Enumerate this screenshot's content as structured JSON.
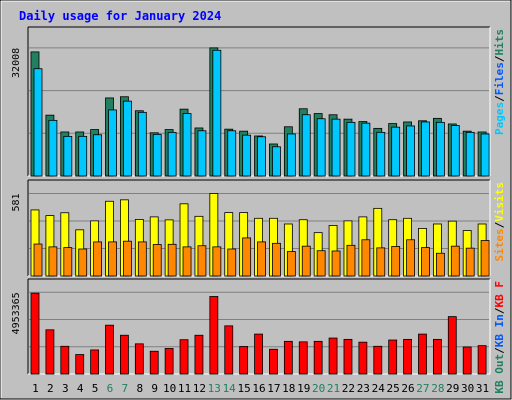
{
  "chart_data": {
    "type": "bar",
    "title": "Daily usage for January 2024",
    "categories": [
      "1",
      "2",
      "3",
      "4",
      "5",
      "6",
      "7",
      "8",
      "9",
      "10",
      "11",
      "12",
      "13",
      "14",
      "15",
      "16",
      "17",
      "18",
      "19",
      "20",
      "21",
      "22",
      "23",
      "24",
      "25",
      "26",
      "27",
      "28",
      "29",
      "30",
      "31"
    ],
    "weekend_days": [
      "6",
      "7",
      "13",
      "14",
      "20",
      "21",
      "27",
      "28"
    ],
    "panels": [
      {
        "id": "hits",
        "ymax_label": "32008",
        "ymax": 32008,
        "series": [
          {
            "name": "Hits",
            "color": "#208060",
            "values": [
              31000,
              15200,
              11000,
              11000,
              11600,
              19500,
              19800,
              16300,
              10800,
              11600,
              16700,
              12000,
              32008,
              11700,
              11200,
              10000,
              8000,
              12300,
              16800,
              15600,
              15300,
              14200,
              13600,
              11900,
              13100,
              13500,
              13800,
              14400,
              13000,
              11200,
              11000
            ]
          },
          {
            "name": "Files",
            "color": "#00c8ff",
            "values": [
              26800,
              13900,
              9900,
              9900,
              10300,
              16500,
              18700,
              15900,
              10400,
              10900,
              15600,
              11300,
              31400,
              11300,
              10200,
              9800,
              7300,
              10500,
              15300,
              14300,
              14200,
              13400,
              13200,
              10900,
              12200,
              12500,
              13500,
              13400,
              12600,
              10900,
              10500
            ]
          },
          {
            "name": "Pages",
            "color": "#00c8ff",
            "values": []
          }
        ],
        "legend": [
          {
            "label": "Hits",
            "color": "#208060"
          },
          {
            "label": "Files",
            "color": "#0058ff"
          },
          {
            "label": "Pages",
            "color": "#00c8ff"
          }
        ]
      },
      {
        "id": "visits",
        "ymax_label": "581",
        "ymax": 581,
        "series": [
          {
            "name": "Visits",
            "color": "#ffff00",
            "values": [
              465,
              425,
              445,
              325,
              388,
              526,
              536,
              398,
              416,
              395,
              508,
              420,
              581,
              446,
              446,
              406,
              406,
              366,
              396,
              305,
              356,
              388,
              416,
              476,
              396,
              406,
              335,
              366,
              386,
              320,
              366
            ]
          },
          {
            "name": "Sites",
            "color": "#ff8800",
            "values": [
              225,
              205,
              200,
              190,
              240,
              240,
              245,
              240,
              222,
              223,
              205,
              213,
              205,
              190,
              268,
              240,
              230,
              172,
              210,
              178,
              176,
              216,
              255,
              198,
              208,
              255,
              200,
              160,
              210,
              196,
              250
            ]
          }
        ],
        "legend": [
          {
            "label": "Visits",
            "color": "#ffff00"
          },
          {
            "label": "Sites",
            "color": "#ff8800"
          }
        ]
      },
      {
        "id": "kbytes",
        "ymax_label": "4953365",
        "ymax": 4953365,
        "series": [
          {
            "name": "KB F",
            "color": "#ff0000",
            "values": [
              4900000,
              2680000,
              1680000,
              1180000,
              1460000,
              2960000,
              2350000,
              1830000,
              1380000,
              1550000,
              2080000,
              2350000,
              4700000,
              2920000,
              1670000,
              2420000,
              1500000,
              1980000,
              1950000,
              1980000,
              2180000,
              2100000,
              1930000,
              1680000,
              2060000,
              2100000,
              2420000,
              2100000,
              3480000,
              1640000,
              1720000
            ]
          }
        ],
        "legend": [
          {
            "label": "KB F",
            "color": "#ff0000"
          },
          {
            "label": "KB In",
            "color": "#0058ff"
          },
          {
            "label": "KB Out",
            "color": "#208060"
          }
        ]
      }
    ]
  },
  "colors": {
    "frame_bg": "#c0c0c0",
    "plot_bg": "#c0c0c0",
    "title": "#0000ff",
    "weekday_label": "#000000",
    "weekend_label": "#208060",
    "separator": "#808080"
  }
}
